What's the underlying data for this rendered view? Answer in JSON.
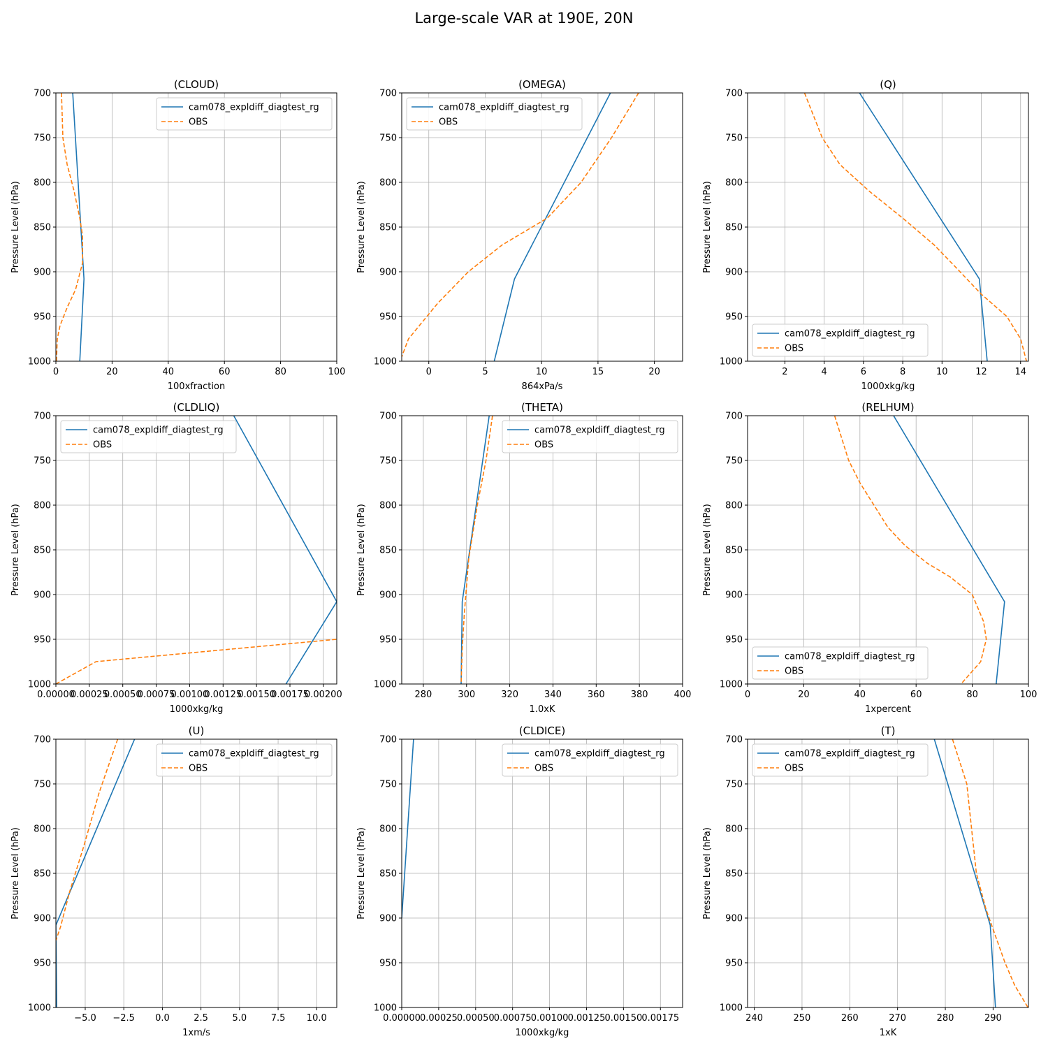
{
  "figure": {
    "title": "Large-scale VAR at 190E, 20N",
    "colors": {
      "model": "#1f77b4",
      "obs": "#ff7f0e",
      "grid": "#b0b0b0",
      "axis": "#000000"
    }
  },
  "chart_data": [
    {
      "type": "line",
      "title": "(CLOUD)",
      "xlabel": "100xfraction",
      "ylabel": "Pressure Level (hPa)",
      "xlim": [
        0,
        100
      ],
      "ylim": [
        1000,
        700
      ],
      "xticks": [
        0,
        20,
        40,
        60,
        80,
        100
      ],
      "xtick_labels": [
        "0",
        "20",
        "40",
        "60",
        "80",
        "100"
      ],
      "yticks": [
        700,
        750,
        800,
        850,
        900,
        950,
        1000
      ],
      "ytick_labels": [
        "700",
        "750",
        "800",
        "850",
        "900",
        "950",
        "1000"
      ],
      "grid": true,
      "legend": "upper right",
      "series": [
        {
          "name": "cam078_expldiff_diagtest_rg",
          "style": "solid",
          "points": [
            [
              6,
              700
            ],
            [
              10,
              908
            ],
            [
              8.5,
              1000
            ]
          ]
        },
        {
          "name": "OBS",
          "style": "dashed",
          "points": [
            [
              2,
              700
            ],
            [
              2.5,
              750
            ],
            [
              4,
              780
            ],
            [
              6.5,
              810
            ],
            [
              8.5,
              840
            ],
            [
              9.5,
              860
            ],
            [
              9.5,
              890
            ],
            [
              7,
              920
            ],
            [
              4,
              940
            ],
            [
              1.5,
              960
            ],
            [
              0.5,
              975
            ],
            [
              0.2,
              1000
            ]
          ]
        }
      ]
    },
    {
      "type": "line",
      "title": "(OMEGA)",
      "xlabel": "864xPa/s",
      "ylabel": "Pressure Level (hPa)",
      "xlim": [
        -2.4,
        22.5
      ],
      "ylim": [
        1000,
        700
      ],
      "xticks": [
        0,
        5,
        10,
        15,
        20
      ],
      "xtick_labels": [
        "0",
        "5",
        "10",
        "15",
        "20"
      ],
      "yticks": [
        700,
        750,
        800,
        850,
        900,
        950,
        1000
      ],
      "ytick_labels": [
        "700",
        "750",
        "800",
        "850",
        "900",
        "950",
        "1000"
      ],
      "grid": true,
      "legend": "upper left",
      "series": [
        {
          "name": "cam078_expldiff_diagtest_rg",
          "style": "solid",
          "points": [
            [
              16.1,
              700
            ],
            [
              7.6,
              908
            ],
            [
              5.8,
              1000
            ]
          ]
        },
        {
          "name": "OBS",
          "style": "dashed",
          "points": [
            [
              18.6,
              700
            ],
            [
              16.2,
              750
            ],
            [
              13.5,
              800
            ],
            [
              10.5,
              840
            ],
            [
              6.5,
              870
            ],
            [
              3.5,
              900
            ],
            [
              0.8,
              935
            ],
            [
              -1.8,
              975
            ],
            [
              -2.4,
              995
            ]
          ]
        }
      ]
    },
    {
      "type": "line",
      "title": "(Q)",
      "xlabel": "1000xkg/kg",
      "ylabel": "Pressure Level (hPa)",
      "xlim": [
        0.1,
        14.4
      ],
      "ylim": [
        1000,
        700
      ],
      "xticks": [
        2,
        4,
        6,
        8,
        10,
        12,
        14
      ],
      "xtick_labels": [
        "2",
        "4",
        "6",
        "8",
        "10",
        "12",
        "14"
      ],
      "yticks": [
        700,
        750,
        800,
        850,
        900,
        950,
        1000
      ],
      "ytick_labels": [
        "700",
        "750",
        "800",
        "850",
        "900",
        "950",
        "1000"
      ],
      "grid": true,
      "legend": "lower left",
      "series": [
        {
          "name": "cam078_expldiff_diagtest_rg",
          "style": "solid",
          "points": [
            [
              5.8,
              700
            ],
            [
              11.9,
              908
            ],
            [
              12.3,
              1000
            ]
          ]
        },
        {
          "name": "OBS",
          "style": "dashed",
          "points": [
            [
              3.0,
              700
            ],
            [
              3.9,
              750
            ],
            [
              4.8,
              780
            ],
            [
              6.3,
              810
            ],
            [
              8.0,
              840
            ],
            [
              9.6,
              870
            ],
            [
              10.7,
              895
            ],
            [
              12.0,
              925
            ],
            [
              13.3,
              950
            ],
            [
              14.0,
              975
            ],
            [
              14.3,
              1000
            ]
          ]
        }
      ]
    },
    {
      "type": "line",
      "title": "(CLDLIQ)",
      "xlabel": "1000xkg/kg",
      "ylabel": "Pressure Level (hPa)",
      "xlim": [
        0,
        0.0021
      ],
      "ylim": [
        1000,
        700
      ],
      "xticks": [
        0,
        0.00025,
        0.0005,
        0.00075,
        0.001,
        0.00125,
        0.0015,
        0.00175,
        0.002
      ],
      "xtick_labels": [
        "0.00000",
        "0.00025",
        "0.00050",
        "0.00075",
        "0.00100",
        "0.00125",
        "0.00150",
        "0.00175",
        "0.00200"
      ],
      "yticks": [
        700,
        750,
        800,
        850,
        900,
        950,
        1000
      ],
      "ytick_labels": [
        "700",
        "750",
        "800",
        "850",
        "900",
        "950",
        "1000"
      ],
      "grid": true,
      "legend": "upper left",
      "series": [
        {
          "name": "cam078_expldiff_diagtest_rg",
          "style": "solid",
          "points": [
            [
              0.00133,
              700
            ],
            [
              0.0021,
              908
            ],
            [
              0.00172,
              1000
            ]
          ]
        },
        {
          "name": "OBS",
          "style": "dashed",
          "points": [
            [
              0,
              1000
            ],
            [
              0.0003,
              975
            ],
            [
              0.0021,
              950
            ]
          ]
        }
      ]
    },
    {
      "type": "line",
      "title": "(THETA)",
      "xlabel": "1.0xK",
      "ylabel": "Pressure Level (hPa)",
      "xlim": [
        270,
        400
      ],
      "ylim": [
        1000,
        700
      ],
      "xticks": [
        280,
        300,
        320,
        340,
        360,
        380,
        400
      ],
      "xtick_labels": [
        "280",
        "300",
        "320",
        "340",
        "360",
        "380",
        "400"
      ],
      "yticks": [
        700,
        750,
        800,
        850,
        900,
        950,
        1000
      ],
      "ytick_labels": [
        "700",
        "750",
        "800",
        "850",
        "900",
        "950",
        "1000"
      ],
      "grid": true,
      "legend": "upper right",
      "series": [
        {
          "name": "cam078_expldiff_diagtest_rg",
          "style": "solid",
          "points": [
            [
              310.5,
              700
            ],
            [
              298,
              908
            ],
            [
              297.5,
              1000
            ]
          ]
        },
        {
          "name": "OBS",
          "style": "dashed",
          "points": [
            [
              312,
              700
            ],
            [
              309,
              750
            ],
            [
              305,
              800
            ],
            [
              301,
              860
            ],
            [
              299,
              920
            ],
            [
              298,
              960
            ],
            [
              297.5,
              1000
            ]
          ]
        }
      ]
    },
    {
      "type": "line",
      "title": "(RELHUM)",
      "xlabel": "1xpercent",
      "ylabel": "Pressure Level (hPa)",
      "xlim": [
        0,
        100
      ],
      "ylim": [
        1000,
        700
      ],
      "xticks": [
        0,
        20,
        40,
        60,
        80,
        100
      ],
      "xtick_labels": [
        "0",
        "20",
        "40",
        "60",
        "80",
        "100"
      ],
      "yticks": [
        700,
        750,
        800,
        850,
        900,
        950,
        1000
      ],
      "ytick_labels": [
        "700",
        "750",
        "800",
        "850",
        "900",
        "950",
        "1000"
      ],
      "grid": true,
      "legend": "lower left",
      "series": [
        {
          "name": "cam078_expldiff_diagtest_rg",
          "style": "solid",
          "points": [
            [
              52,
              700
            ],
            [
              91.5,
              908
            ],
            [
              88.5,
              1000
            ]
          ]
        },
        {
          "name": "OBS",
          "style": "dashed",
          "points": [
            [
              31,
              700
            ],
            [
              36,
              750
            ],
            [
              40,
              775
            ],
            [
              46,
              805
            ],
            [
              50,
              825
            ],
            [
              56,
              845
            ],
            [
              64,
              865
            ],
            [
              72,
              880
            ],
            [
              80,
              900
            ],
            [
              84,
              930
            ],
            [
              85,
              950
            ],
            [
              83,
              975
            ],
            [
              76,
              1000
            ]
          ]
        }
      ]
    },
    {
      "type": "line",
      "title": "(U)",
      "xlabel": "1xm/s",
      "ylabel": "Pressure Level (hPa)",
      "xlim": [
        -6.9,
        11.3
      ],
      "ylim": [
        1000,
        700
      ],
      "xticks": [
        -5,
        -2.5,
        0,
        2.5,
        5,
        7.5,
        10
      ],
      "xtick_labels": [
        "−5.0",
        "−2.5",
        "0.0",
        "2.5",
        "5.0",
        "7.5",
        "10.0"
      ],
      "yticks": [
        700,
        750,
        800,
        850,
        900,
        950,
        1000
      ],
      "ytick_labels": [
        "700",
        "750",
        "800",
        "850",
        "900",
        "950",
        "1000"
      ],
      "grid": true,
      "legend": "upper right",
      "series": [
        {
          "name": "cam078_expldiff_diagtest_rg",
          "style": "solid",
          "points": [
            [
              -1.8,
              700
            ],
            [
              -6.9,
              908
            ],
            [
              -6.85,
              1000
            ]
          ]
        },
        {
          "name": "OBS",
          "style": "dashed",
          "points": [
            [
              -2.9,
              700
            ],
            [
              -4.1,
              760
            ],
            [
              -5.1,
              820
            ],
            [
              -6.0,
              870
            ],
            [
              -6.6,
              910
            ],
            [
              -6.9,
              925
            ]
          ]
        }
      ]
    },
    {
      "type": "line",
      "title": "(CLDICE)",
      "xlabel": "1000xkg/kg",
      "ylabel": "Pressure Level (hPa)",
      "xlim": [
        0,
        0.0019
      ],
      "ylim": [
        1000,
        700
      ],
      "xticks": [
        0,
        0.00025,
        0.0005,
        0.00075,
        0.001,
        0.00125,
        0.0015,
        0.00175
      ],
      "xtick_labels": [
        "0.00000",
        "0.00025",
        "0.00050",
        "0.00075",
        "0.00100",
        "0.00125",
        "0.00150",
        "0.00175"
      ],
      "yticks": [
        700,
        750,
        800,
        850,
        900,
        950,
        1000
      ],
      "ytick_labels": [
        "700",
        "750",
        "800",
        "850",
        "900",
        "950",
        "1000"
      ],
      "grid": true,
      "legend": "upper right",
      "series": [
        {
          "name": "cam078_expldiff_diagtest_rg",
          "style": "solid",
          "points": [
            [
              8e-05,
              700
            ],
            [
              0,
              900
            ]
          ]
        },
        {
          "name": "OBS",
          "style": "dashed",
          "points": []
        }
      ]
    },
    {
      "type": "line",
      "title": "(T)",
      "xlabel": "1xK",
      "ylabel": "Pressure Level (hPa)",
      "xlim": [
        238.6,
        297.4
      ],
      "ylim": [
        1000,
        700
      ],
      "xticks": [
        240,
        250,
        260,
        270,
        280,
        290
      ],
      "xtick_labels": [
        "240",
        "250",
        "260",
        "270",
        "280",
        "290"
      ],
      "yticks": [
        700,
        750,
        800,
        850,
        900,
        950,
        1000
      ],
      "ytick_labels": [
        "700",
        "750",
        "800",
        "850",
        "900",
        "950",
        "1000"
      ],
      "grid": true,
      "legend": "upper left",
      "series": [
        {
          "name": "cam078_expldiff_diagtest_rg",
          "style": "solid",
          "points": [
            [
              277.7,
              700
            ],
            [
              289.4,
              908
            ],
            [
              290.5,
              1000
            ]
          ]
        },
        {
          "name": "OBS",
          "style": "dashed",
          "points": [
            [
              281.5,
              700
            ],
            [
              284.5,
              750
            ],
            [
              285.5,
              800
            ],
            [
              286.5,
              850
            ],
            [
              288.5,
              890
            ],
            [
              290.5,
              920
            ],
            [
              292.5,
              950
            ],
            [
              294.5,
              975
            ],
            [
              297.3,
              1000
            ]
          ]
        }
      ]
    }
  ]
}
